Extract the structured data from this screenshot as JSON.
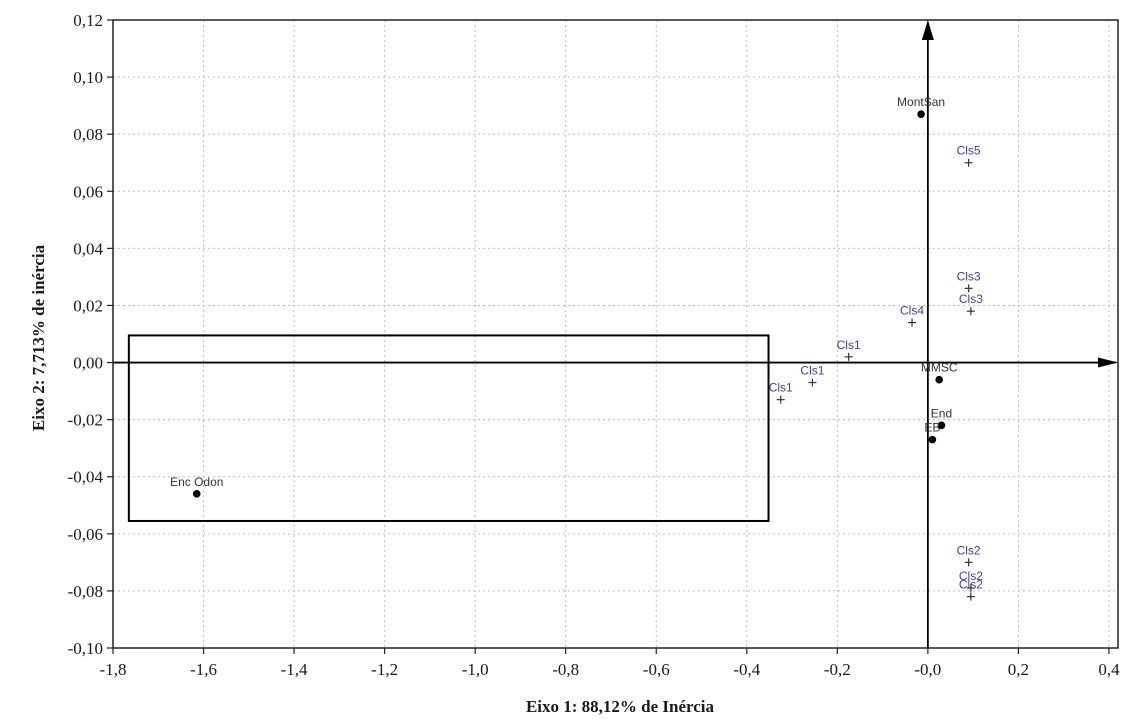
{
  "chart_data": {
    "type": "scatter",
    "xlabel": "Eixo 1: 88,12% de Inércia",
    "ylabel": "Eixo 2: 7,713% de inércia",
    "xlim": [
      -1.8,
      0.42
    ],
    "ylim": [
      -0.1,
      0.12
    ],
    "grid": true,
    "x_ticks": [
      -1.8,
      -1.6,
      -1.4,
      -1.2,
      -1.0,
      -0.8,
      -0.6,
      -0.4,
      -0.2,
      0.0,
      0.2,
      0.4
    ],
    "x_tick_labels": [
      "-1,8",
      "-1,6",
      "-1,4",
      "-1,2",
      "-1,0",
      "-0,8",
      "-0,6",
      "-0,4",
      "-0,2",
      "-0,0",
      "0,2",
      "0,4"
    ],
    "y_ticks": [
      0.12,
      0.1,
      0.08,
      0.06,
      0.04,
      0.02,
      0.0,
      -0.02,
      -0.04,
      -0.06,
      -0.08,
      -0.1
    ],
    "y_tick_labels": [
      "0,12",
      "0,10",
      "0,08",
      "0,06",
      "0,04",
      "0,02",
      "0,00",
      "-0,02",
      "-0,04",
      "-0,06",
      "-0,08",
      "-0,10"
    ],
    "series": [
      {
        "marker": "circle",
        "color": "#000000",
        "label_color": "#333333",
        "points": [
          {
            "label": "Enc Odon",
            "x": -1.615,
            "y": -0.046
          },
          {
            "label": "MontSan",
            "x": -0.015,
            "y": 0.087
          },
          {
            "label": "MMSC",
            "x": 0.025,
            "y": -0.006
          },
          {
            "label": "End",
            "x": 0.03,
            "y": -0.022
          },
          {
            "label": "EB",
            "x": 0.01,
            "y": -0.027
          }
        ]
      },
      {
        "marker": "plus",
        "color": "#333333",
        "label_color": "#3c3cb4",
        "points": [
          {
            "label": "Cls5",
            "x": 0.09,
            "y": 0.07
          },
          {
            "label": "Cls3",
            "x": 0.09,
            "y": 0.026
          },
          {
            "label": "Cls3",
            "x": 0.095,
            "y": 0.018
          },
          {
            "label": "Cls4",
            "x": -0.035,
            "y": 0.014
          },
          {
            "label": "Cls1",
            "x": -0.175,
            "y": 0.002
          },
          {
            "label": "Cls1",
            "x": -0.255,
            "y": -0.007
          },
          {
            "label": "Cls1",
            "x": -0.325,
            "y": -0.013
          },
          {
            "label": "Cls2",
            "x": 0.09,
            "y": -0.07
          },
          {
            "label": "Cls2",
            "x": 0.095,
            "y": -0.079
          },
          {
            "label": "Cls2",
            "x": 0.095,
            "y": -0.082
          }
        ]
      }
    ],
    "annotation_rectangle": {
      "x0": -1.765,
      "x1": -0.352,
      "y0": -0.0555,
      "y1": 0.0095
    },
    "reference_axes_through_origin": true
  }
}
